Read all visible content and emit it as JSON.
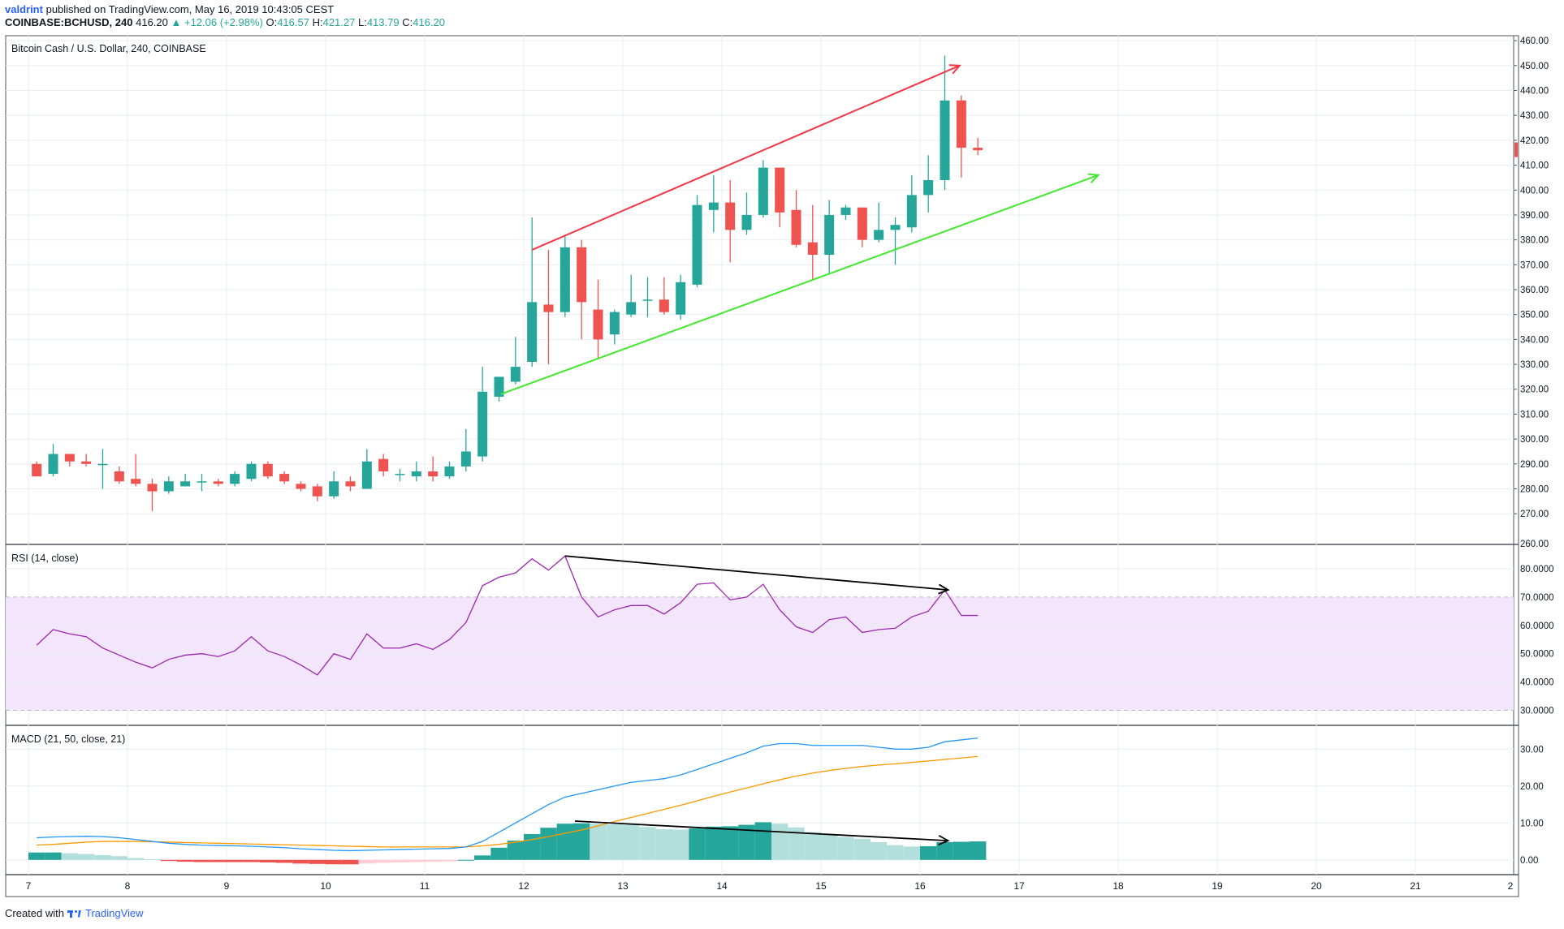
{
  "header": {
    "author": "valdrint",
    "published_text": "published on TradingView.com, May 16, 2019 10:43:05 CEST",
    "symbol": "COINBASE:BCHUSD, 240",
    "last": "416.20",
    "change": "+12.06 (+2.98%)",
    "open_label": "O:",
    "open": "416.57",
    "high_label": "H:",
    "high": "421.27",
    "low_label": "L:",
    "low": "413.79",
    "close_label": "C:",
    "close": "416.20"
  },
  "footer": {
    "created_with": "Created with",
    "brand": "TradingView"
  },
  "colors": {
    "up": "#26a69a",
    "down": "#ef5350",
    "rsi": "#9c27b0",
    "rsi_band": "#f3e5fc",
    "macd": "#2196f3",
    "signal": "#ff9800",
    "hist_up_strong": "#26a69a",
    "hist_up_weak": "#b2dfdb",
    "hist_down_strong": "#ef5350",
    "hist_down_weak": "#ffcdd2",
    "trend_upper": "#f23645",
    "trend_lower": "#41e82c",
    "divergence": "#000000",
    "grid": "#e9edf2"
  },
  "chart_data": [
    {
      "type": "candlestick",
      "title": "Bitcoin Cash / U.S. Dollar, 240, COINBASE",
      "price_axis_ticks": [
        "270.00",
        "280.00",
        "290.00",
        "300.00",
        "310.00",
        "320.00",
        "330.00",
        "340.00",
        "350.00",
        "360.00",
        "370.00",
        "380.00",
        "390.00",
        "400.00",
        "410.00",
        "420.00",
        "430.00",
        "440.00",
        "450.00",
        "460.00"
      ],
      "price_axis_cut_label": "260.00",
      "ylim": [
        258,
        462
      ],
      "last_price_label": "416.20",
      "x_dates": [
        "7",
        "8",
        "9",
        "10",
        "11",
        "12",
        "13",
        "14",
        "15",
        "16",
        "17",
        "18",
        "19",
        "20",
        "21",
        "2"
      ],
      "candles_per_day": 6,
      "candles": [
        {
          "o": 290,
          "h": 291,
          "l": 285,
          "c": 285
        },
        {
          "o": 286,
          "h": 298,
          "l": 285,
          "c": 294
        },
        {
          "o": 294,
          "h": 294,
          "l": 289,
          "c": 291
        },
        {
          "o": 291,
          "h": 294,
          "l": 289,
          "c": 290
        },
        {
          "o": 290,
          "h": 296,
          "l": 280,
          "c": 290
        },
        {
          "o": 287,
          "h": 289,
          "l": 282,
          "c": 283
        },
        {
          "o": 284,
          "h": 294,
          "l": 281,
          "c": 282
        },
        {
          "o": 282,
          "h": 284,
          "l": 271,
          "c": 279
        },
        {
          "o": 279,
          "h": 285,
          "l": 278,
          "c": 283
        },
        {
          "o": 281,
          "h": 286,
          "l": 281,
          "c": 283
        },
        {
          "o": 283,
          "h": 286,
          "l": 279,
          "c": 283
        },
        {
          "o": 283,
          "h": 284,
          "l": 281,
          "c": 282
        },
        {
          "o": 282,
          "h": 287,
          "l": 281,
          "c": 286
        },
        {
          "o": 284,
          "h": 291,
          "l": 283,
          "c": 290
        },
        {
          "o": 290,
          "h": 291,
          "l": 284,
          "c": 285
        },
        {
          "o": 286,
          "h": 287,
          "l": 282,
          "c": 283
        },
        {
          "o": 282,
          "h": 283,
          "l": 279,
          "c": 280
        },
        {
          "o": 281,
          "h": 282,
          "l": 275,
          "c": 277
        },
        {
          "o": 277,
          "h": 287,
          "l": 276,
          "c": 283
        },
        {
          "o": 283,
          "h": 285,
          "l": 279,
          "c": 281
        },
        {
          "o": 280,
          "h": 296,
          "l": 280,
          "c": 291
        },
        {
          "o": 292,
          "h": 294,
          "l": 285,
          "c": 287
        },
        {
          "o": 286,
          "h": 288,
          "l": 283,
          "c": 286
        },
        {
          "o": 285,
          "h": 291,
          "l": 283,
          "c": 287
        },
        {
          "o": 287,
          "h": 293,
          "l": 283,
          "c": 285
        },
        {
          "o": 285,
          "h": 291,
          "l": 284,
          "c": 289
        },
        {
          "o": 289,
          "h": 304,
          "l": 287,
          "c": 295
        },
        {
          "o": 293,
          "h": 329,
          "l": 291,
          "c": 319
        },
        {
          "o": 317,
          "h": 325,
          "l": 315,
          "c": 325
        },
        {
          "o": 323,
          "h": 341,
          "l": 322,
          "c": 329
        },
        {
          "o": 331,
          "h": 389,
          "l": 329,
          "c": 355
        },
        {
          "o": 354,
          "h": 376,
          "l": 330,
          "c": 351
        },
        {
          "o": 351,
          "h": 382,
          "l": 349,
          "c": 377
        },
        {
          "o": 377,
          "h": 380,
          "l": 340,
          "c": 355
        },
        {
          "o": 352,
          "h": 364,
          "l": 332,
          "c": 340
        },
        {
          "o": 342,
          "h": 352,
          "l": 338,
          "c": 351
        },
        {
          "o": 350,
          "h": 366,
          "l": 349,
          "c": 355
        },
        {
          "o": 356,
          "h": 365,
          "l": 349,
          "c": 356
        },
        {
          "o": 356,
          "h": 365,
          "l": 350,
          "c": 351
        },
        {
          "o": 350,
          "h": 366,
          "l": 348,
          "c": 363
        },
        {
          "o": 362,
          "h": 398,
          "l": 361,
          "c": 394
        },
        {
          "o": 392,
          "h": 406,
          "l": 383,
          "c": 395
        },
        {
          "o": 395,
          "h": 404,
          "l": 371,
          "c": 384
        },
        {
          "o": 384,
          "h": 399,
          "l": 382,
          "c": 390
        },
        {
          "o": 390,
          "h": 412,
          "l": 389,
          "c": 409
        },
        {
          "o": 409,
          "h": 409,
          "l": 385,
          "c": 391
        },
        {
          "o": 392,
          "h": 400,
          "l": 377,
          "c": 378
        },
        {
          "o": 379,
          "h": 394,
          "l": 364,
          "c": 374
        },
        {
          "o": 374,
          "h": 396,
          "l": 366,
          "c": 390
        },
        {
          "o": 390,
          "h": 394,
          "l": 388,
          "c": 393
        },
        {
          "o": 393,
          "h": 393,
          "l": 377,
          "c": 380
        },
        {
          "o": 380,
          "h": 395,
          "l": 379,
          "c": 384
        },
        {
          "o": 384,
          "h": 389,
          "l": 370,
          "c": 386
        },
        {
          "o": 385,
          "h": 406,
          "l": 383,
          "c": 398
        },
        {
          "o": 398,
          "h": 414,
          "l": 391,
          "c": 404
        },
        {
          "o": 404,
          "h": 454,
          "l": 400,
          "c": 436
        },
        {
          "o": 436,
          "h": 438,
          "l": 405,
          "c": 417
        },
        {
          "o": 417,
          "h": 421,
          "l": 414,
          "c": 416
        }
      ],
      "trendlines": {
        "upper": {
          "from_candle": 30,
          "from_price": 376,
          "to_candle": 55.9,
          "to_price": 450
        },
        "lower": {
          "from_candle": 28.1,
          "from_price": 318,
          "to_candle": 64.3,
          "to_price": 406
        }
      }
    },
    {
      "type": "line",
      "title": "RSI (14, close)",
      "axis_ticks": [
        "30.0000",
        "40.0000",
        "50.0000",
        "60.0000",
        "70.0000",
        "80.0000"
      ],
      "ylim": [
        25,
        88
      ],
      "band": [
        30,
        70
      ],
      "values": [
        53,
        58.5,
        57,
        56,
        52,
        49.5,
        47,
        45,
        48,
        49.5,
        50,
        49,
        51,
        56,
        51,
        49,
        46,
        42.5,
        50,
        48,
        57,
        52,
        52,
        53.5,
        51.5,
        55,
        61,
        74,
        77,
        78.5,
        83.5,
        79.5,
        84.5,
        70,
        63,
        65.5,
        67,
        67,
        64,
        68,
        74.5,
        75,
        69,
        70,
        74.5,
        65.5,
        59.5,
        57.5,
        62,
        63,
        57.5,
        58.5,
        59,
        63,
        65,
        72.5,
        63.5,
        63.5
      ],
      "divergence": {
        "from_index": 32,
        "from_value": 84.5,
        "to_index": 55.2,
        "to_value": 72.5
      }
    },
    {
      "type": "line+histogram",
      "title": "MACD (21, 50, close, 21)",
      "axis_ticks": [
        "0.00",
        "10.00",
        "20.00",
        "30.00"
      ],
      "ylim": [
        -4,
        36
      ],
      "macd": [
        6,
        6.2,
        6.3,
        6.4,
        6.3,
        6,
        5.5,
        5,
        4.5,
        4.2,
        4,
        3.9,
        3.8,
        3.7,
        3.5,
        3.3,
        3,
        2.8,
        2.6,
        2.5,
        2.6,
        2.7,
        2.8,
        2.9,
        3,
        3.1,
        3.5,
        5,
        7.5,
        10,
        12.5,
        15,
        17,
        18,
        19,
        20,
        21,
        21.5,
        22,
        23,
        24.5,
        26,
        27.5,
        29,
        30.8,
        31.5,
        31.5,
        31,
        31,
        31,
        31,
        30.5,
        30,
        30,
        30.5,
        32,
        32.5,
        33
      ],
      "signal": [
        4,
        4.2,
        4.5,
        4.8,
        5,
        5,
        5,
        4.9,
        4.8,
        4.7,
        4.6,
        4.5,
        4.4,
        4.3,
        4.2,
        4.1,
        4,
        3.9,
        3.8,
        3.7,
        3.6,
        3.5,
        3.5,
        3.5,
        3.5,
        3.5,
        3.5,
        3.8,
        4.2,
        4.8,
        5.5,
        6.3,
        7.2,
        8.1,
        9.2,
        10.4,
        11.5,
        12.6,
        13.7,
        14.8,
        16,
        17.2,
        18.4,
        19.5,
        20.6,
        21.7,
        22.7,
        23.5,
        24.2,
        24.8,
        25.3,
        25.7,
        26,
        26.4,
        26.8,
        27.2,
        27.6,
        28
      ],
      "histogram": [
        2,
        2,
        1.8,
        1.6,
        1.3,
        1,
        0.5,
        0.2,
        -0.3,
        -0.5,
        -0.6,
        -0.6,
        -0.6,
        -0.6,
        -0.7,
        -0.8,
        -1,
        -1.1,
        -1.2,
        -1.2,
        -1,
        -0.8,
        -0.7,
        -0.6,
        -0.5,
        -0.4,
        0,
        1.2,
        3.3,
        5.2,
        7,
        8.7,
        9.8,
        9.9,
        9.8,
        9.6,
        9.5,
        8.9,
        8.3,
        8.2,
        8.5,
        9,
        9.1,
        9.5,
        10.2,
        9.8,
        8.8,
        7.5,
        6.8,
        6.2,
        5.7,
        4.8,
        4,
        3.6,
        3.7,
        4.8,
        4.9,
        5
      ],
      "divergence": {
        "from_index": 32.6,
        "from_value": 10.5,
        "to_index": 55.2,
        "to_value": 5.2
      }
    }
  ]
}
